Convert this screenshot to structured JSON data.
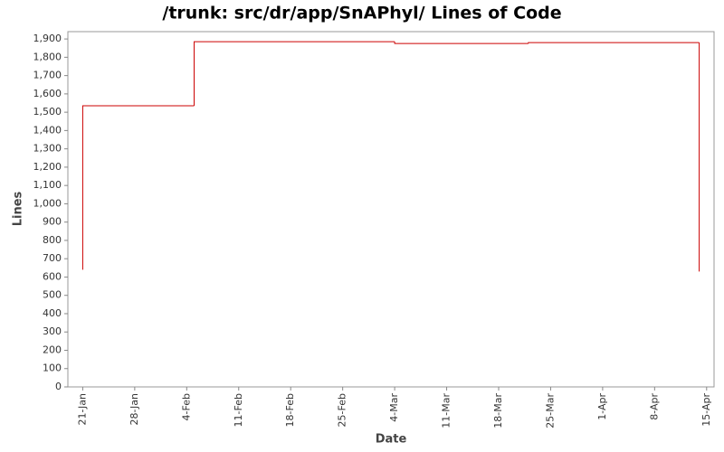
{
  "chart_data": {
    "type": "step-line",
    "title": "/trunk: src/dr/app/SnAPhyl/ Lines of Code",
    "x_label": "Date",
    "y_label": "Lines",
    "series": [
      {
        "name": "Lines",
        "color": "#cc0000",
        "x": [
          "21-Jan",
          "21-Jan",
          "5-Feb",
          "4-Mar",
          "22-Mar",
          "14-Apr"
        ],
        "values": [
          640,
          1535,
          1885,
          1875,
          1880,
          630
        ]
      }
    ],
    "xlim": [
      "19-Jan",
      "16-Apr"
    ],
    "xticks": [
      "21-Jan",
      "28-Jan",
      "4-Feb",
      "11-Feb",
      "18-Feb",
      "25-Feb",
      "4-Mar",
      "11-Mar",
      "18-Mar",
      "25-Mar",
      "1-Apr",
      "8-Apr",
      "15-Apr"
    ],
    "ylim": [
      0,
      1940
    ],
    "yticks": [
      0,
      100,
      200,
      300,
      400,
      500,
      600,
      700,
      800,
      900,
      {
        "value": 1000,
        "label": "1,000"
      },
      {
        "value": 1100,
        "label": "1,100"
      },
      {
        "value": 1200,
        "label": "1,200"
      },
      {
        "value": 1300,
        "label": "1,300"
      },
      {
        "value": 1400,
        "label": "1,400"
      },
      {
        "value": 1500,
        "label": "1,500"
      },
      {
        "value": 1600,
        "label": "1,600"
      },
      {
        "value": 1700,
        "label": "1,700"
      },
      {
        "value": 1800,
        "label": "1,800"
      },
      {
        "value": 1900,
        "label": "1,900"
      }
    ],
    "grid": false
  }
}
